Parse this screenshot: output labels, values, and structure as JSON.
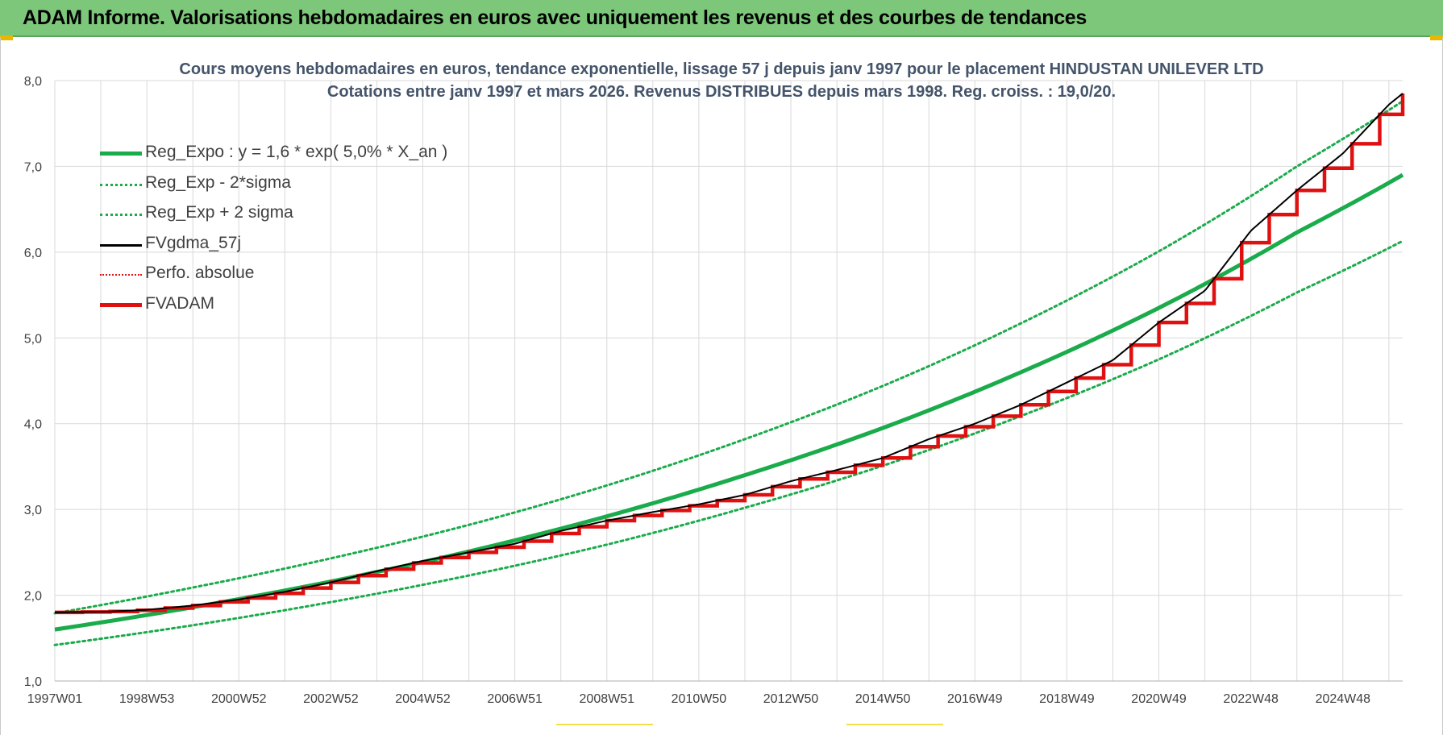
{
  "banner": {
    "title": "ADAM Informe. Valorisations hebdomadaires en euros avec uniquement les revenus et des courbes de tendances"
  },
  "colors": {
    "banner": "#7dc77a",
    "trend": "#1aab4b",
    "fvgdma": "#000000",
    "fvadam": "#e11010",
    "perfo": "#e11010",
    "title_text": "#44546a",
    "grid": "#d9d9d9"
  },
  "chart_data": {
    "type": "line",
    "title": "Cours moyens hebdomadaires en euros, tendance exponentielle, lissage 57 j depuis janv 1997 pour le placement HINDUSTAN UNILEVER LTD",
    "subtitle": "Cotations entre janv 1997 et mars 2026. Revenus DISTRIBUES depuis mars 1998. Reg. croiss. : 19,0/20.",
    "xlabel": "",
    "ylabel": "",
    "x_range": [
      1997.0,
      2026.3
    ],
    "ylim": [
      1.0,
      8.0
    ],
    "y_ticks": [
      "1,0",
      "2,0",
      "3,0",
      "4,0",
      "5,0",
      "6,0",
      "7,0",
      "8,0"
    ],
    "x_ticks": [
      {
        "label": "1997W01",
        "x": 1997.0
      },
      {
        "label": "1998W53",
        "x": 1999.0
      },
      {
        "label": "2000W52",
        "x": 2001.0
      },
      {
        "label": "2002W52",
        "x": 2003.0
      },
      {
        "label": "2004W52",
        "x": 2005.0
      },
      {
        "label": "2006W51",
        "x": 2007.0
      },
      {
        "label": "2008W51",
        "x": 2009.0
      },
      {
        "label": "2010W50",
        "x": 2011.0
      },
      {
        "label": "2012W50",
        "x": 2013.0
      },
      {
        "label": "2014W50",
        "x": 2015.0
      },
      {
        "label": "2016W49",
        "x": 2017.0
      },
      {
        "label": "2018W49",
        "x": 2019.0
      },
      {
        "label": "2020W49",
        "x": 2021.0
      },
      {
        "label": "2022W48",
        "x": 2023.0
      },
      {
        "label": "2024W48",
        "x": 2025.0
      }
    ],
    "grid": true,
    "legend_position": "top-left",
    "series": [
      {
        "name": "Reg_Expo : y = 1,6 * exp( 5,0% *  X_an )",
        "style": "solid-thick",
        "color": "#1aab4b",
        "x": [
          1997.0,
          2000.0,
          2003.0,
          2006.0,
          2009.0,
          2012.0,
          2015.0,
          2018.0,
          2021.0,
          2024.0,
          2026.3
        ],
        "y": [
          1.6,
          1.86,
          2.16,
          2.51,
          2.92,
          3.4,
          3.95,
          4.6,
          5.35,
          6.23,
          6.9
        ]
      },
      {
        "name": "Reg_Exp - 2*sigma",
        "style": "dotted",
        "color": "#1aab4b",
        "x": [
          1997.0,
          2000.0,
          2003.0,
          2006.0,
          2009.0,
          2012.0,
          2015.0,
          2018.0,
          2021.0,
          2024.0,
          2026.3
        ],
        "y": [
          1.42,
          1.65,
          1.92,
          2.23,
          2.59,
          3.02,
          3.51,
          4.09,
          4.75,
          5.53,
          6.13
        ]
      },
      {
        "name": "Reg_Exp + 2 sigma",
        "style": "dotted",
        "color": "#1aab4b",
        "x": [
          1997.0,
          2000.0,
          2003.0,
          2006.0,
          2009.0,
          2012.0,
          2015.0,
          2018.0,
          2021.0,
          2024.0,
          2026.3
        ],
        "y": [
          1.79,
          2.09,
          2.43,
          2.82,
          3.28,
          3.82,
          4.44,
          5.17,
          6.01,
          7.0,
          7.76
        ]
      },
      {
        "name": "FVgdma_57j",
        "style": "solid-thin",
        "color": "#000000",
        "x": [
          1997.0,
          1998.2,
          1999.0,
          2000.0,
          2001.0,
          2002.0,
          2003.0,
          2004.0,
          2005.0,
          2006.0,
          2007.0,
          2008.0,
          2009.0,
          2010.0,
          2011.0,
          2012.0,
          2013.0,
          2014.0,
          2015.0,
          2016.0,
          2017.0,
          2018.0,
          2019.0,
          2020.0,
          2021.0,
          2022.0,
          2023.0,
          2024.0,
          2025.0,
          2026.0,
          2026.3
        ],
        "y": [
          1.8,
          1.81,
          1.83,
          1.88,
          1.95,
          2.04,
          2.15,
          2.28,
          2.4,
          2.5,
          2.6,
          2.75,
          2.87,
          2.97,
          3.06,
          3.17,
          3.33,
          3.46,
          3.6,
          3.82,
          4.0,
          4.22,
          4.48,
          4.74,
          5.18,
          5.55,
          6.25,
          6.72,
          7.15,
          7.72,
          7.85
        ]
      },
      {
        "name": "Perfo. absolue",
        "style": "dotted",
        "color": "#e11010",
        "x": [],
        "y": []
      },
      {
        "name": "FVADAM",
        "style": "stepped-thick",
        "color": "#e11010",
        "x": [
          1997.0,
          1998.2,
          1999.0,
          2000.0,
          2001.0,
          2002.0,
          2003.0,
          2004.0,
          2005.0,
          2006.0,
          2007.0,
          2008.0,
          2009.0,
          2010.0,
          2011.0,
          2012.0,
          2013.0,
          2014.0,
          2015.0,
          2016.0,
          2017.0,
          2018.0,
          2019.0,
          2020.0,
          2021.0,
          2022.0,
          2023.0,
          2024.0,
          2025.0,
          2026.0,
          2026.3
        ],
        "y": [
          1.8,
          1.81,
          1.83,
          1.88,
          1.95,
          2.04,
          2.15,
          2.28,
          2.4,
          2.5,
          2.6,
          2.75,
          2.87,
          2.97,
          3.06,
          3.17,
          3.33,
          3.46,
          3.6,
          3.82,
          4.0,
          4.22,
          4.48,
          4.74,
          5.18,
          5.55,
          6.25,
          6.72,
          7.15,
          7.72,
          7.85
        ]
      }
    ]
  }
}
